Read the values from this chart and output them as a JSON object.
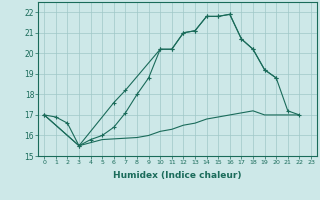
{
  "xlabel": "Humidex (Indice chaleur)",
  "xlim": [
    -0.5,
    23.5
  ],
  "ylim": [
    15,
    22.5
  ],
  "yticks": [
    15,
    16,
    17,
    18,
    19,
    20,
    21,
    22
  ],
  "xticks": [
    0,
    1,
    2,
    3,
    4,
    5,
    6,
    7,
    8,
    9,
    10,
    11,
    12,
    13,
    14,
    15,
    16,
    17,
    18,
    19,
    20,
    21,
    22,
    23
  ],
  "bg_color": "#cde8e8",
  "grid_color": "#a0c8c8",
  "line_color": "#1a6b5a",
  "s1_x": [
    0,
    1,
    2,
    3,
    4,
    5,
    6,
    7,
    8,
    9,
    10,
    11,
    12,
    13,
    14,
    15,
    16,
    17,
    18,
    19,
    20
  ],
  "s1_y": [
    17.0,
    16.9,
    16.6,
    15.5,
    15.8,
    16.0,
    16.4,
    17.1,
    18.0,
    18.8,
    20.2,
    20.2,
    21.0,
    21.1,
    21.8,
    21.8,
    21.9,
    20.7,
    20.2,
    19.2,
    18.8
  ],
  "s2_x": [
    0,
    3,
    6,
    7,
    10,
    11,
    12,
    13,
    14,
    15,
    16,
    17,
    18,
    19,
    20,
    21,
    22
  ],
  "s2_y": [
    17.0,
    15.5,
    17.6,
    18.2,
    20.2,
    20.2,
    21.0,
    21.1,
    21.8,
    21.8,
    21.9,
    20.7,
    20.2,
    19.2,
    18.8,
    17.2,
    17.0
  ],
  "s3_x": [
    0,
    3,
    5,
    8,
    9,
    10,
    11,
    12,
    13,
    14,
    15,
    16,
    17,
    18,
    19,
    20,
    22
  ],
  "s3_y": [
    17.0,
    15.5,
    15.8,
    15.9,
    16.0,
    16.2,
    16.3,
    16.5,
    16.6,
    16.8,
    16.9,
    17.0,
    17.1,
    17.2,
    17.0,
    17.0,
    17.0
  ]
}
